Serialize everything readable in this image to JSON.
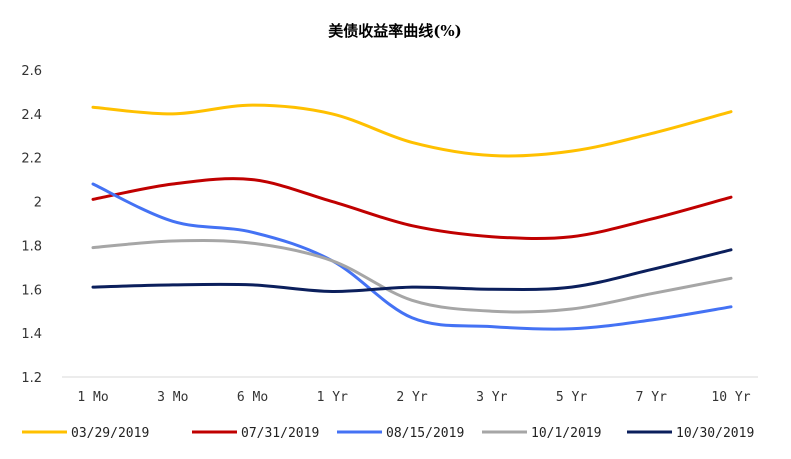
{
  "chart_data": {
    "type": "line",
    "title": "美债收益率曲线(%)",
    "xlabel": "",
    "ylabel": "",
    "categories": [
      "1 Mo",
      "3 Mo",
      "6 Mo",
      "1 Yr",
      "2 Yr",
      "3 Yr",
      "5 Yr",
      "7 Yr",
      "10 Yr"
    ],
    "ylim": [
      1.2,
      2.6
    ],
    "yticks": [
      1.2,
      1.4,
      1.6,
      1.8,
      2,
      2.2,
      2.4,
      2.6
    ],
    "ytick_labels": [
      "1.2",
      "1.4",
      "1.6",
      "1.8",
      "2",
      "2.2",
      "2.4",
      "2.6"
    ],
    "grid": false,
    "legend_position": "bottom",
    "series": [
      {
        "name": "03/29/2019",
        "color": "#FFC000",
        "values": [
          2.43,
          2.4,
          2.44,
          2.4,
          2.27,
          2.21,
          2.23,
          2.31,
          2.41
        ]
      },
      {
        "name": "07/31/2019",
        "color": "#C00000",
        "values": [
          2.01,
          2.08,
          2.1,
          2.0,
          1.89,
          1.84,
          1.84,
          1.92,
          2.02
        ]
      },
      {
        "name": "08/15/2019",
        "color": "#4472F4",
        "values": [
          2.08,
          1.91,
          1.86,
          1.73,
          1.47,
          1.43,
          1.42,
          1.46,
          1.52
        ]
      },
      {
        "name": "10/1/2019",
        "color": "#A6A6A6",
        "values": [
          1.79,
          1.82,
          1.81,
          1.73,
          1.55,
          1.5,
          1.51,
          1.58,
          1.65
        ]
      },
      {
        "name": "10/30/2019",
        "color": "#0B1F5C",
        "values": [
          1.61,
          1.62,
          1.62,
          1.59,
          1.61,
          1.6,
          1.61,
          1.69,
          1.78
        ]
      }
    ]
  }
}
